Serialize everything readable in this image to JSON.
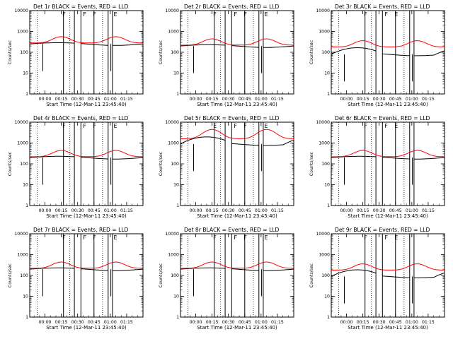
{
  "figure": {
    "x_tick_labels": [
      "00:00",
      "00:15",
      "00:30",
      "00:45",
      "01:00",
      "01:15"
    ],
    "y_tick_labels": [
      "1",
      "10",
      "100",
      "1000",
      "10000"
    ],
    "ylabel": "Counts/sec",
    "xlabel": "Start Time (12-Mar-11 23:45:40)",
    "colors": {
      "events": "#000000",
      "lld": "#ff0000",
      "background": "#ffffff"
    }
  },
  "chart_data": [
    {
      "type": "line",
      "detector": "1r",
      "title": "Det 1r BLACK = Events, RED = LLD",
      "xlabel": "Start Time (12-Mar-11 23:45:40)",
      "ylabel": "Counts/sec",
      "xlim_min": [
        -14,
        90
      ],
      "ylim": [
        1,
        10000
      ],
      "y_scale": "log",
      "x_ticks_min": [
        0,
        15,
        30,
        45,
        60,
        75
      ],
      "y_ticks": [
        1,
        10,
        100,
        1000,
        10000
      ],
      "dotted_x_min": [
        0,
        30,
        60
      ],
      "flag_labels": [
        "F",
        "F",
        "F",
        "E"
      ],
      "gaps_min": [
        [
          27,
          33
        ],
        [
          58,
          62
        ]
      ],
      "series": [
        {
          "name": "Events",
          "color": "#000000",
          "base": 250,
          "amplitude": 0.0
        },
        {
          "name": "LLD",
          "color": "#ff0000",
          "base": 280,
          "amplitude": 2.5
        }
      ]
    },
    {
      "type": "line",
      "detector": "2r",
      "title": "Det 2r BLACK = Events, RED = LLD",
      "xlabel": "Start Time (12-Mar-11 23:45:40)",
      "ylabel": "Counts/sec",
      "xlim_min": [
        -14,
        90
      ],
      "ylim": [
        1,
        10000
      ],
      "y_scale": "log",
      "x_ticks_min": [
        0,
        15,
        30,
        45,
        60,
        75
      ],
      "y_ticks": [
        1,
        10,
        100,
        1000,
        10000
      ],
      "dotted_x_min": [
        0,
        30,
        60
      ],
      "flag_labels": [
        "F",
        "F",
        "F",
        "E"
      ],
      "gaps_min": [
        [
          27,
          33
        ],
        [
          58,
          62
        ]
      ],
      "series": [
        {
          "name": "Events",
          "color": "#000000",
          "base": 200,
          "amplitude": 0.0
        },
        {
          "name": "LLD",
          "color": "#ff0000",
          "base": 220,
          "amplitude": 2.5
        }
      ]
    },
    {
      "type": "line",
      "detector": "3r",
      "title": "Det 3r BLACK = Events, RED = LLD",
      "xlabel": "Start Time (12-Mar-11 23:45:40)",
      "ylabel": "Counts/sec",
      "xlim_min": [
        -14,
        90
      ],
      "ylim": [
        1,
        10000
      ],
      "y_scale": "log",
      "x_ticks_min": [
        0,
        15,
        30,
        45,
        60,
        75
      ],
      "y_ticks": [
        1,
        10,
        100,
        1000,
        10000
      ],
      "dotted_x_min": [
        0,
        30,
        60
      ],
      "flag_labels": [
        "F",
        "F",
        "E"
      ],
      "gaps_min": [
        [
          27,
          33
        ],
        [
          58,
          62
        ]
      ],
      "series": [
        {
          "name": "Events",
          "color": "#000000",
          "base": 80,
          "amplitude": 0.8
        },
        {
          "name": "LLD",
          "color": "#ff0000",
          "base": 180,
          "amplitude": 2.5
        }
      ]
    },
    {
      "type": "line",
      "detector": "4r",
      "title": "Det 4r BLACK = Events, RED = LLD",
      "xlabel": "Start Time (12-Mar-11 23:45:40)",
      "ylabel": "Counts/sec",
      "xlim_min": [
        -14,
        90
      ],
      "ylim": [
        1,
        10000
      ],
      "y_scale": "log",
      "x_ticks_min": [
        0,
        15,
        30,
        45,
        60,
        75
      ],
      "y_ticks": [
        1,
        10,
        100,
        1000,
        10000
      ],
      "dotted_x_min": [
        0,
        30,
        60
      ],
      "flag_labels": [
        "F",
        "F",
        "F",
        "E"
      ],
      "gaps_min": [
        [
          27,
          33
        ],
        [
          58,
          62
        ]
      ],
      "series": [
        {
          "name": "Events",
          "color": "#000000",
          "base": 200,
          "amplitude": 0.0
        },
        {
          "name": "LLD",
          "color": "#ff0000",
          "base": 220,
          "amplitude": 2.5
        }
      ]
    },
    {
      "type": "line",
      "detector": "5r",
      "title": "Det 5r BLACK = Events, RED = LLD",
      "xlabel": "Start Time (12-Mar-11 23:45:40)",
      "ylabel": "Counts/sec",
      "xlim_min": [
        -14,
        90
      ],
      "ylim": [
        1,
        10000
      ],
      "y_scale": "log",
      "x_ticks_min": [
        0,
        15,
        30,
        45,
        60,
        75
      ],
      "y_ticks": [
        1,
        10,
        100,
        1000,
        10000
      ],
      "dotted_x_min": [
        0,
        30,
        60
      ],
      "flag_labels": [
        "E",
        "F",
        "F",
        "E"
      ],
      "gaps_min": [
        [
          27,
          33
        ],
        [
          58,
          62
        ]
      ],
      "series": [
        {
          "name": "Events",
          "color": "#000000",
          "base": 900,
          "amplitude": 0.9
        },
        {
          "name": "LLD",
          "color": "#ff0000",
          "base": 1600,
          "amplitude": 4.5
        }
      ]
    },
    {
      "type": "line",
      "detector": "6r",
      "title": "Det 6r BLACK = Events, RED = LLD",
      "xlabel": "Start Time (12-Mar-11 23:45:40)",
      "ylabel": "Counts/sec",
      "xlim_min": [
        -14,
        90
      ],
      "ylim": [
        1,
        10000
      ],
      "y_scale": "log",
      "x_ticks_min": [
        0,
        15,
        30,
        45,
        60,
        75
      ],
      "y_ticks": [
        1,
        10,
        100,
        1000,
        10000
      ],
      "dotted_x_min": [
        0,
        30,
        60
      ],
      "flag_labels": [
        "F",
        "F",
        "E"
      ],
      "gaps_min": [
        [
          27,
          33
        ],
        [
          58,
          62
        ]
      ],
      "series": [
        {
          "name": "Events",
          "color": "#000000",
          "base": 200,
          "amplitude": 0.0
        },
        {
          "name": "LLD",
          "color": "#ff0000",
          "base": 220,
          "amplitude": 2.5
        }
      ]
    },
    {
      "type": "line",
      "detector": "7r",
      "title": "Det 7r BLACK = Events, RED = LLD",
      "xlabel": "Start Time (12-Mar-11 23:45:40)",
      "ylabel": "Counts/sec",
      "xlim_min": [
        -14,
        90
      ],
      "ylim": [
        1,
        10000
      ],
      "y_scale": "log",
      "x_ticks_min": [
        0,
        15,
        30,
        45,
        60,
        75
      ],
      "y_ticks": [
        1,
        10,
        100,
        1000,
        10000
      ],
      "dotted_x_min": [
        0,
        30,
        60
      ],
      "flag_labels": [
        "F",
        "F",
        "F",
        "E"
      ],
      "gaps_min": [
        [
          27,
          33
        ],
        [
          58,
          62
        ]
      ],
      "series": [
        {
          "name": "Events",
          "color": "#000000",
          "base": 200,
          "amplitude": 0.0
        },
        {
          "name": "LLD",
          "color": "#ff0000",
          "base": 220,
          "amplitude": 2.5
        }
      ]
    },
    {
      "type": "line",
      "detector": "8r",
      "title": "Det 8r BLACK = Events, RED = LLD",
      "xlabel": "Start Time (12-Mar-11 23:45:40)",
      "ylabel": "Counts/sec",
      "xlim_min": [
        -14,
        90
      ],
      "ylim": [
        1,
        10000
      ],
      "y_scale": "log",
      "x_ticks_min": [
        0,
        15,
        30,
        45,
        60,
        75
      ],
      "y_ticks": [
        1,
        10,
        100,
        1000,
        10000
      ],
      "dotted_x_min": [
        0,
        30,
        60
      ],
      "flag_labels": [
        "F",
        "F",
        "F",
        "E"
      ],
      "gaps_min": [
        [
          27,
          33
        ],
        [
          58,
          62
        ]
      ],
      "series": [
        {
          "name": "Events",
          "color": "#000000",
          "base": 200,
          "amplitude": 0.0
        },
        {
          "name": "LLD",
          "color": "#ff0000",
          "base": 220,
          "amplitude": 2.5
        }
      ]
    },
    {
      "type": "line",
      "detector": "9r",
      "title": "Det 9r BLACK = Events, RED = LLD",
      "xlabel": "Start Time (12-Mar-11 23:45:40)",
      "ylabel": "Counts/sec",
      "xlim_min": [
        -14,
        90
      ],
      "ylim": [
        1,
        10000
      ],
      "y_scale": "log",
      "x_ticks_min": [
        0,
        15,
        30,
        45,
        60,
        75
      ],
      "y_ticks": [
        1,
        10,
        100,
        1000,
        10000
      ],
      "dotted_x_min": [
        0,
        30,
        60
      ],
      "flag_labels": [
        "F",
        "F",
        "E"
      ],
      "gaps_min": [
        [
          27,
          33
        ],
        [
          58,
          62
        ]
      ],
      "series": [
        {
          "name": "Events",
          "color": "#000000",
          "base": 90,
          "amplitude": 0.8
        },
        {
          "name": "LLD",
          "color": "#ff0000",
          "base": 180,
          "amplitude": 2.5
        }
      ]
    }
  ]
}
